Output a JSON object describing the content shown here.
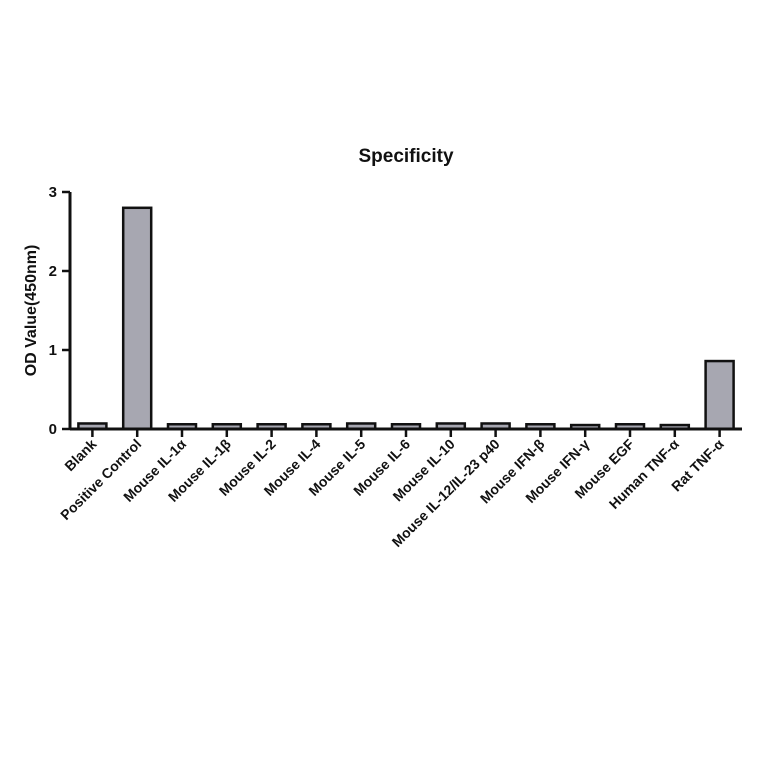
{
  "chart_data": {
    "type": "bar",
    "title": "Specificity",
    "xlabel": "",
    "ylabel": "OD Value(450nm)",
    "ylim": [
      0,
      3
    ],
    "yticks": [
      0,
      1,
      2,
      3
    ],
    "categories": [
      "Blank",
      "Positive Control",
      "Mouse IL-1α",
      "Mouse IL-1β",
      "Mouse IL-2",
      "Mouse IL-4",
      "Mouse IL-5",
      "Mouse IL-6",
      "Mouse IL-10",
      "Mouse IL-12/IL-23 p40",
      "Mouse IFN-β",
      "Mouse IFN-γ",
      "Mouse EGF",
      "Human TNF-α",
      "Rat TNF-α"
    ],
    "values": [
      0.07,
      2.8,
      0.06,
      0.06,
      0.06,
      0.06,
      0.07,
      0.06,
      0.07,
      0.07,
      0.06,
      0.05,
      0.06,
      0.05,
      0.86
    ],
    "bar_color": "#a7a7b1",
    "grid": false,
    "legend": "none"
  }
}
